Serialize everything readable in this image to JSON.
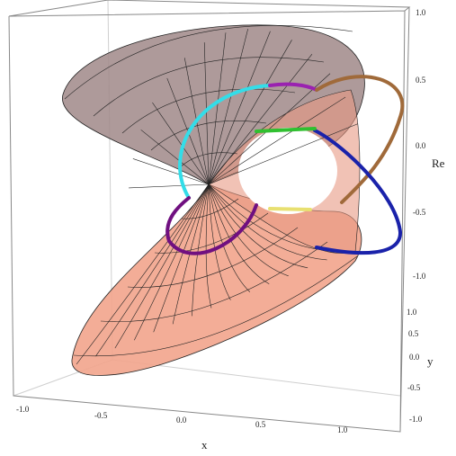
{
  "axes": {
    "re": {
      "label": "Re",
      "ticks": [
        "1.0",
        "0.5",
        "0.0",
        "-0.5",
        "-1.0"
      ]
    },
    "y": {
      "label": "y",
      "ticks": [
        "1.0",
        "0.5",
        "0.0",
        "-0.5",
        "-1.0"
      ]
    },
    "x": {
      "label": "x",
      "ticks": [
        "-1.0",
        "-0.5",
        "0.0",
        "0.5",
        "1.0"
      ]
    }
  }
}
